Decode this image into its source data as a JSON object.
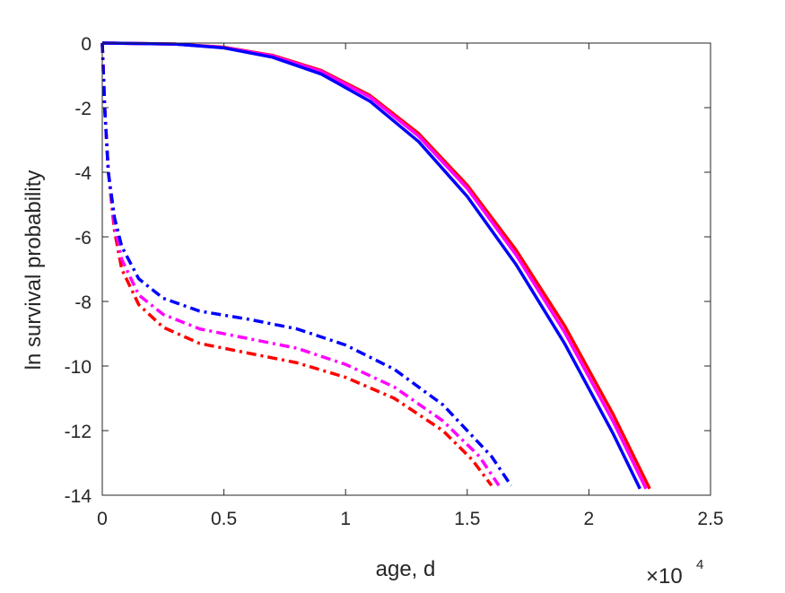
{
  "chart_data": {
    "type": "line",
    "xlabel": "age, d",
    "ylabel": "ln survival probability",
    "x_exponent_label": {
      "base": "×10",
      "power": "4"
    },
    "xlim": [
      0,
      25000
    ],
    "ylim": [
      -14,
      0
    ],
    "x_ticks": [
      0,
      5000,
      10000,
      15000,
      20000,
      25000
    ],
    "x_tick_labels": [
      "0",
      "0.5",
      "1",
      "1.5",
      "2",
      "2.5"
    ],
    "y_ticks": [
      0,
      -2,
      -4,
      -6,
      -8,
      -10,
      -12,
      -14
    ],
    "y_tick_labels": [
      "0",
      "-2",
      "-4",
      "-6",
      "-8",
      "-10",
      "-12",
      "-14"
    ],
    "grid": false,
    "colors": {
      "red": "#ff0000",
      "magenta": "#ff00ff",
      "blue": "#0000ff",
      "axis": "#262626"
    },
    "series": [
      {
        "color": "#ff0000",
        "style": "solid",
        "points": [
          [
            0,
            0
          ],
          [
            3000,
            -0.03
          ],
          [
            5000,
            -0.13
          ],
          [
            7000,
            -0.38
          ],
          [
            9000,
            -0.85
          ],
          [
            11000,
            -1.62
          ],
          [
            13000,
            -2.8
          ],
          [
            15000,
            -4.4
          ],
          [
            17000,
            -6.4
          ],
          [
            19000,
            -8.75
          ],
          [
            21000,
            -11.5
          ],
          [
            22500,
            -13.8
          ]
        ]
      },
      {
        "color": "#ff00ff",
        "style": "solid",
        "points": [
          [
            0,
            0
          ],
          [
            3000,
            -0.03
          ],
          [
            5000,
            -0.14
          ],
          [
            7000,
            -0.4
          ],
          [
            9000,
            -0.88
          ],
          [
            11000,
            -1.67
          ],
          [
            13000,
            -2.88
          ],
          [
            15000,
            -4.5
          ],
          [
            17000,
            -6.55
          ],
          [
            19000,
            -8.95
          ],
          [
            21000,
            -11.72
          ],
          [
            22350,
            -13.8
          ]
        ]
      },
      {
        "color": "#0000ff",
        "style": "solid",
        "points": [
          [
            0,
            0
          ],
          [
            3000,
            -0.03
          ],
          [
            5000,
            -0.15
          ],
          [
            7000,
            -0.44
          ],
          [
            9000,
            -0.96
          ],
          [
            11000,
            -1.8
          ],
          [
            13000,
            -3.05
          ],
          [
            15000,
            -4.75
          ],
          [
            17000,
            -6.85
          ],
          [
            19000,
            -9.3
          ],
          [
            21000,
            -12.1
          ],
          [
            22100,
            -13.8
          ]
        ]
      },
      {
        "color": "#ff0000",
        "style": "dashdot",
        "points": [
          [
            0,
            0
          ],
          [
            100,
            -2
          ],
          [
            250,
            -4
          ],
          [
            500,
            -5.8
          ],
          [
            800,
            -7.0
          ],
          [
            1500,
            -8.1
          ],
          [
            2500,
            -8.8
          ],
          [
            4000,
            -9.3
          ],
          [
            6000,
            -9.6
          ],
          [
            8000,
            -9.9
          ],
          [
            10000,
            -10.35
          ],
          [
            12000,
            -11.0
          ],
          [
            14000,
            -12.0
          ],
          [
            15200,
            -12.9
          ],
          [
            16000,
            -13.7
          ]
        ]
      },
      {
        "color": "#ff00ff",
        "style": "dashdot",
        "points": [
          [
            0,
            0
          ],
          [
            100,
            -2
          ],
          [
            250,
            -4
          ],
          [
            500,
            -5.6
          ],
          [
            800,
            -6.7
          ],
          [
            1500,
            -7.8
          ],
          [
            2500,
            -8.4
          ],
          [
            4000,
            -8.85
          ],
          [
            6000,
            -9.15
          ],
          [
            8000,
            -9.45
          ],
          [
            10000,
            -9.95
          ],
          [
            12000,
            -10.65
          ],
          [
            14000,
            -11.7
          ],
          [
            15500,
            -12.8
          ],
          [
            16300,
            -13.7
          ]
        ]
      },
      {
        "color": "#0000ff",
        "style": "dashdot",
        "points": [
          [
            0,
            0
          ],
          [
            100,
            -2
          ],
          [
            250,
            -4
          ],
          [
            500,
            -5.4
          ],
          [
            800,
            -6.3
          ],
          [
            1500,
            -7.3
          ],
          [
            2500,
            -7.9
          ],
          [
            4000,
            -8.3
          ],
          [
            6000,
            -8.55
          ],
          [
            8000,
            -8.85
          ],
          [
            10000,
            -9.35
          ],
          [
            12000,
            -10.1
          ],
          [
            14000,
            -11.2
          ],
          [
            16000,
            -12.8
          ],
          [
            16800,
            -13.7
          ]
        ]
      }
    ]
  }
}
